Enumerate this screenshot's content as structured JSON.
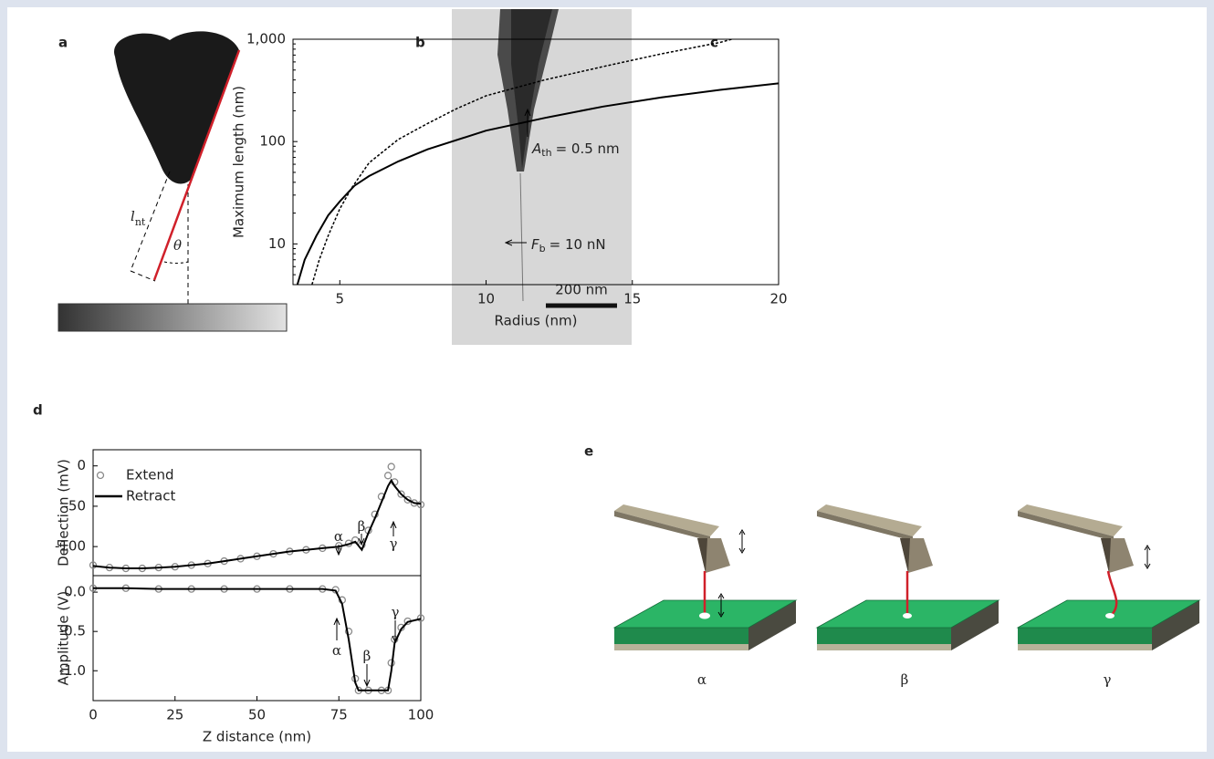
{
  "panel_labels": [
    "a",
    "b",
    "c",
    "d",
    "e"
  ],
  "panel_a": {
    "length_label": {
      "text": "l",
      "sub": "nt"
    },
    "angle_label": "θ"
  },
  "panel_b": {
    "scale_bar": "200 nm"
  },
  "chart_data": [
    {
      "type": "line",
      "x_label": "Radius (nm)",
      "y_label": "Maximum length (nm)",
      "log_y": true,
      "xlim": [
        3.4,
        20
      ],
      "ylim": [
        4,
        1000
      ],
      "xticks": [
        5,
        10,
        15,
        20
      ],
      "yticks": [
        10,
        100,
        {
          "value": 1000,
          "label": "1,000"
        }
      ],
      "series": [
        {
          "color": "#000000",
          "dash": false,
          "x": [
            3.55,
            3.8,
            4.2,
            4.6,
            5,
            5.5,
            6,
            7,
            8,
            10,
            12,
            14,
            16,
            18,
            20
          ],
          "values": [
            4,
            7,
            12,
            19,
            26,
            37,
            46,
            64,
            84,
            128,
            170,
            220,
            270,
            320,
            370
          ]
        },
        {
          "color": "#000000",
          "dash": true,
          "x": [
            4.05,
            4.3,
            4.6,
            5,
            5.4,
            6,
            7,
            8,
            9,
            10,
            12,
            14,
            16,
            18,
            18.4
          ],
          "values": [
            4,
            7,
            12,
            22,
            35,
            62,
            105,
            150,
            210,
            280,
            400,
            540,
            720,
            930,
            1000
          ]
        }
      ],
      "annotations": [
        {
          "text": "A",
          "sub": "th",
          "rest": "= 0.5 nm"
        },
        {
          "text": "F",
          "sub": "b",
          "rest": "= 10 nN"
        }
      ]
    },
    {
      "type": "line",
      "y_label": "Deflection (mV)",
      "xlim": [
        0,
        100
      ],
      "ylim": [
        -136,
        20
      ],
      "yticks": [
        0,
        -50,
        -100
      ],
      "x": [
        0,
        5,
        10,
        15,
        20,
        25,
        30,
        35,
        40,
        45,
        50,
        55,
        60,
        65,
        70,
        75,
        78,
        80,
        82,
        84,
        86,
        88,
        90,
        91,
        92,
        94,
        96,
        98,
        100
      ],
      "series": [
        {
          "name": "Extend",
          "color": "#8a8a8a",
          "marker": "circle",
          "values": [
            -123,
            -126,
            -127,
            -127,
            -126,
            -125,
            -123,
            -121,
            -118,
            -115,
            -112,
            -109,
            -106,
            -104,
            -102,
            -99,
            -96,
            -92,
            -98,
            -80,
            -60,
            -38,
            -12,
            -1,
            -20,
            -35,
            -42,
            -46,
            -48
          ]
        },
        {
          "name": "Retract",
          "color": "#000000",
          "values": [
            -124,
            -126,
            -127,
            -127,
            -126,
            -125,
            -123,
            -121,
            -118,
            -115,
            -112,
            -109,
            -106,
            -104,
            -102,
            -100,
            -97,
            -94,
            -104,
            -83,
            -65,
            -45,
            -25,
            -18,
            -25,
            -35,
            -42,
            -46,
            -47
          ]
        }
      ],
      "annotations": [
        "α",
        "β",
        "γ"
      ]
    },
    {
      "type": "line",
      "x_label": "Z distance (nm)",
      "y_label": "Amplitude (V)",
      "xlim": [
        0,
        100
      ],
      "ylim": [
        -1.38,
        0.21
      ],
      "xticks": [
        0,
        25,
        50,
        75,
        100
      ],
      "yticks": [
        {
          "value": 0,
          "label": "0.0"
        },
        -0.5,
        {
          "value": -1,
          "label": "-1.0"
        }
      ],
      "x": [
        0,
        10,
        20,
        30,
        40,
        50,
        60,
        70,
        74,
        76,
        78,
        80,
        81,
        84,
        88,
        90,
        91,
        92,
        94,
        96,
        100
      ],
      "series": [
        {
          "color": "#8a8a8a",
          "marker": "circle",
          "values": [
            0.05,
            0.05,
            0.04,
            0.04,
            0.04,
            0.04,
            0.04,
            0.04,
            0.03,
            -0.1,
            -0.5,
            -1.1,
            -1.25,
            -1.25,
            -1.25,
            -1.25,
            -0.9,
            -0.6,
            -0.45,
            -0.37,
            -0.33
          ]
        },
        {
          "color": "#000000",
          "values": [
            0.05,
            0.05,
            0.04,
            0.04,
            0.04,
            0.04,
            0.04,
            0.04,
            0.02,
            -0.15,
            -0.6,
            -1.15,
            -1.25,
            -1.25,
            -1.25,
            -1.25,
            -1.0,
            -0.65,
            -0.47,
            -0.38,
            -0.34
          ]
        }
      ],
      "annotations": [
        "α",
        "β",
        "γ"
      ]
    }
  ],
  "panel_e": {
    "states": [
      "α",
      "β",
      "γ"
    ]
  }
}
